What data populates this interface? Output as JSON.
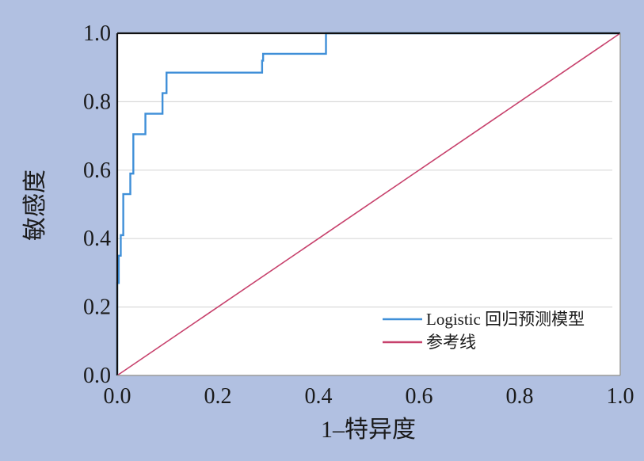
{
  "chart_data": {
    "type": "line",
    "title": "",
    "xlabel": "1–特异度",
    "ylabel": "敏感度",
    "xlim": [
      0,
      1
    ],
    "ylim": [
      0,
      1
    ],
    "x_ticks": [
      "0.0",
      "0.2",
      "0.4",
      "0.6",
      "0.8",
      "1.0"
    ],
    "y_ticks": [
      "0.0",
      "0.2",
      "0.4",
      "0.6",
      "0.8",
      "1.0"
    ],
    "grid": "horizontal",
    "legend_position": "bottom-right",
    "series": [
      {
        "name": "Logistic 回归预测模型",
        "color": "#3f8fd8",
        "step": true,
        "points": [
          [
            0,
            0
          ],
          [
            0,
            0.27
          ],
          [
            0.003,
            0.27
          ],
          [
            0.003,
            0.35
          ],
          [
            0.007,
            0.35
          ],
          [
            0.007,
            0.41
          ],
          [
            0.012,
            0.41
          ],
          [
            0.012,
            0.53
          ],
          [
            0.026,
            0.53
          ],
          [
            0.026,
            0.59
          ],
          [
            0.032,
            0.59
          ],
          [
            0.032,
            0.705
          ],
          [
            0.056,
            0.705
          ],
          [
            0.056,
            0.765
          ],
          [
            0.09,
            0.765
          ],
          [
            0.09,
            0.825
          ],
          [
            0.098,
            0.825
          ],
          [
            0.098,
            0.885
          ],
          [
            0.288,
            0.885
          ],
          [
            0.288,
            0.92
          ],
          [
            0.29,
            0.92
          ],
          [
            0.29,
            0.94
          ],
          [
            0.415,
            0.94
          ],
          [
            0.415,
            1.0
          ],
          [
            1.0,
            1.0
          ]
        ]
      },
      {
        "name": "参考线",
        "color": "#c7416c",
        "step": false,
        "points": [
          [
            0,
            0
          ],
          [
            1,
            1
          ]
        ]
      }
    ]
  }
}
